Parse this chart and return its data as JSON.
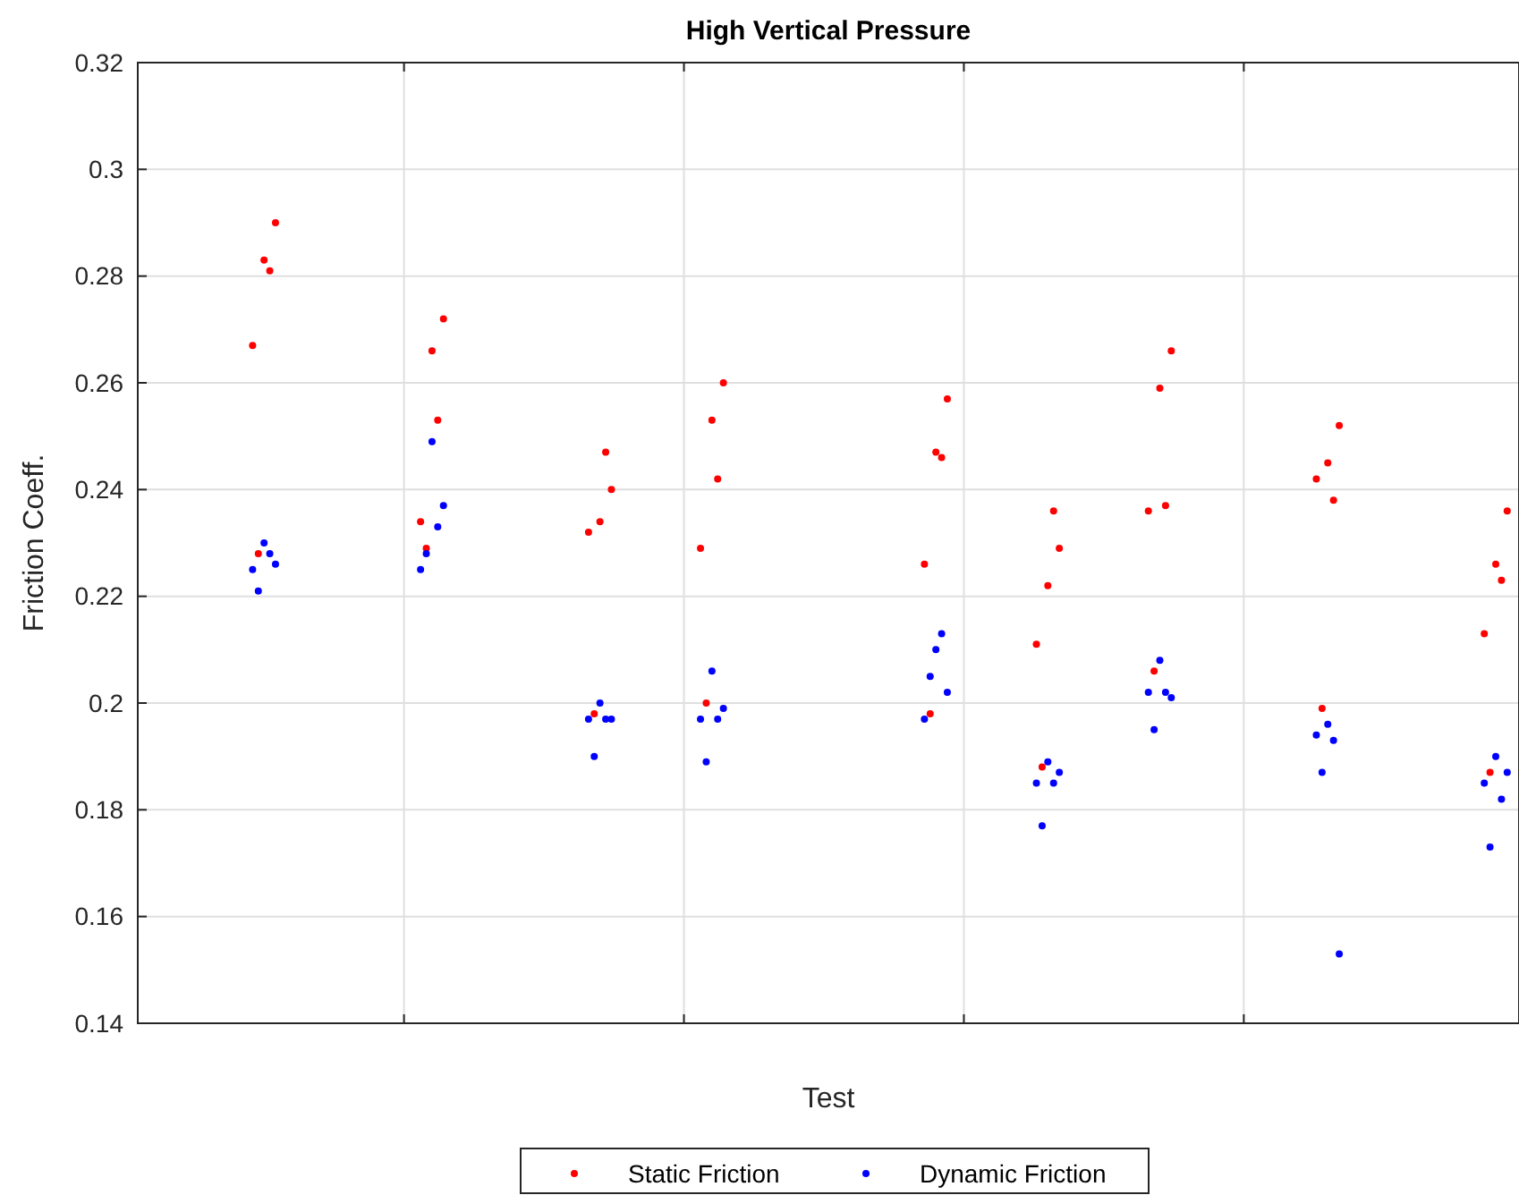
{
  "chart_data": {
    "type": "scatter",
    "title": "High Vertical Pressure",
    "xlabel": "Test",
    "ylabel": "Friction Coeff.",
    "categories": [
      null,
      null,
      null,
      null,
      null,
      null,
      null,
      null,
      null,
      null,
      null,
      null,
      null,
      null,
      null,
      null,
      null,
      null,
      null,
      null,
      null,
      null,
      null,
      null,
      null
    ],
    "ylim": [
      0.14,
      0.32
    ],
    "yticks": [
      0.14,
      0.16,
      0.18,
      0.2,
      0.22,
      0.24,
      0.26,
      0.28,
      0.3,
      0.32
    ],
    "grid": true,
    "legend": "bottom",
    "marker": "circle",
    "series": [
      {
        "name": "Static Friction",
        "color": "#ff0000",
        "values": [
          null,
          null,
          0.267,
          null,
          null,
          0.234,
          null,
          null,
          0.232,
          null,
          0.229,
          null,
          null,
          null,
          0.226,
          null,
          0.211,
          null,
          0.236,
          null,
          null,
          0.242,
          null,
          null,
          0.213
        ]
      },
      {
        "color": "#ff0000",
        "values": [
          null,
          null,
          0.228,
          null,
          null,
          0.229,
          null,
          null,
          0.198,
          null,
          0.2,
          null,
          null,
          null,
          0.198,
          null,
          0.188,
          null,
          0.206,
          null,
          null,
          0.199,
          null,
          null,
          0.187
        ]
      },
      {
        "color": "#ff0000",
        "values": [
          null,
          null,
          0.283,
          null,
          null,
          0.266,
          null,
          null,
          0.234,
          null,
          0.253,
          null,
          null,
          null,
          0.247,
          null,
          0.222,
          null,
          0.259,
          null,
          null,
          0.245,
          null,
          null,
          0.226
        ]
      },
      {
        "color": "#ff0000",
        "values": [
          null,
          null,
          0.281,
          null,
          null,
          0.253,
          null,
          null,
          0.247,
          null,
          0.242,
          null,
          null,
          null,
          0.246,
          null,
          0.236,
          null,
          0.237,
          null,
          null,
          0.238,
          null,
          null,
          0.223
        ]
      },
      {
        "color": "#ff0000",
        "values": [
          null,
          null,
          0.29,
          null,
          null,
          0.272,
          null,
          null,
          0.24,
          null,
          0.26,
          null,
          null,
          null,
          0.257,
          null,
          0.229,
          null,
          0.266,
          null,
          null,
          0.252,
          null,
          null,
          0.236
        ]
      },
      {
        "name": "Dynamic Friction",
        "color": "#0000ff",
        "values": [
          null,
          null,
          0.225,
          null,
          null,
          0.225,
          null,
          null,
          0.197,
          null,
          0.197,
          null,
          null,
          null,
          0.197,
          null,
          0.185,
          null,
          0.202,
          null,
          null,
          0.194,
          null,
          null,
          0.185
        ]
      },
      {
        "color": "#0000ff",
        "values": [
          null,
          null,
          0.221,
          null,
          null,
          0.228,
          null,
          null,
          0.19,
          null,
          0.189,
          null,
          null,
          null,
          0.205,
          null,
          0.177,
          null,
          0.195,
          null,
          null,
          0.187,
          null,
          null,
          0.173
        ]
      },
      {
        "color": "#0000ff",
        "values": [
          null,
          null,
          0.23,
          null,
          null,
          0.249,
          null,
          null,
          0.2,
          null,
          0.206,
          null,
          null,
          null,
          0.21,
          null,
          0.189,
          null,
          0.208,
          null,
          null,
          0.196,
          null,
          null,
          0.19
        ]
      },
      {
        "color": "#0000ff",
        "values": [
          null,
          null,
          0.228,
          null,
          null,
          0.233,
          null,
          null,
          0.197,
          null,
          0.197,
          null,
          null,
          null,
          0.213,
          null,
          0.185,
          null,
          0.202,
          null,
          null,
          0.193,
          null,
          null,
          0.182
        ]
      },
      {
        "color": "#0000ff",
        "values": [
          null,
          null,
          0.226,
          null,
          null,
          0.237,
          null,
          null,
          0.197,
          null,
          0.199,
          null,
          null,
          null,
          0.202,
          null,
          0.187,
          null,
          0.201,
          null,
          null,
          0.153,
          null,
          null,
          0.187
        ]
      }
    ]
  }
}
